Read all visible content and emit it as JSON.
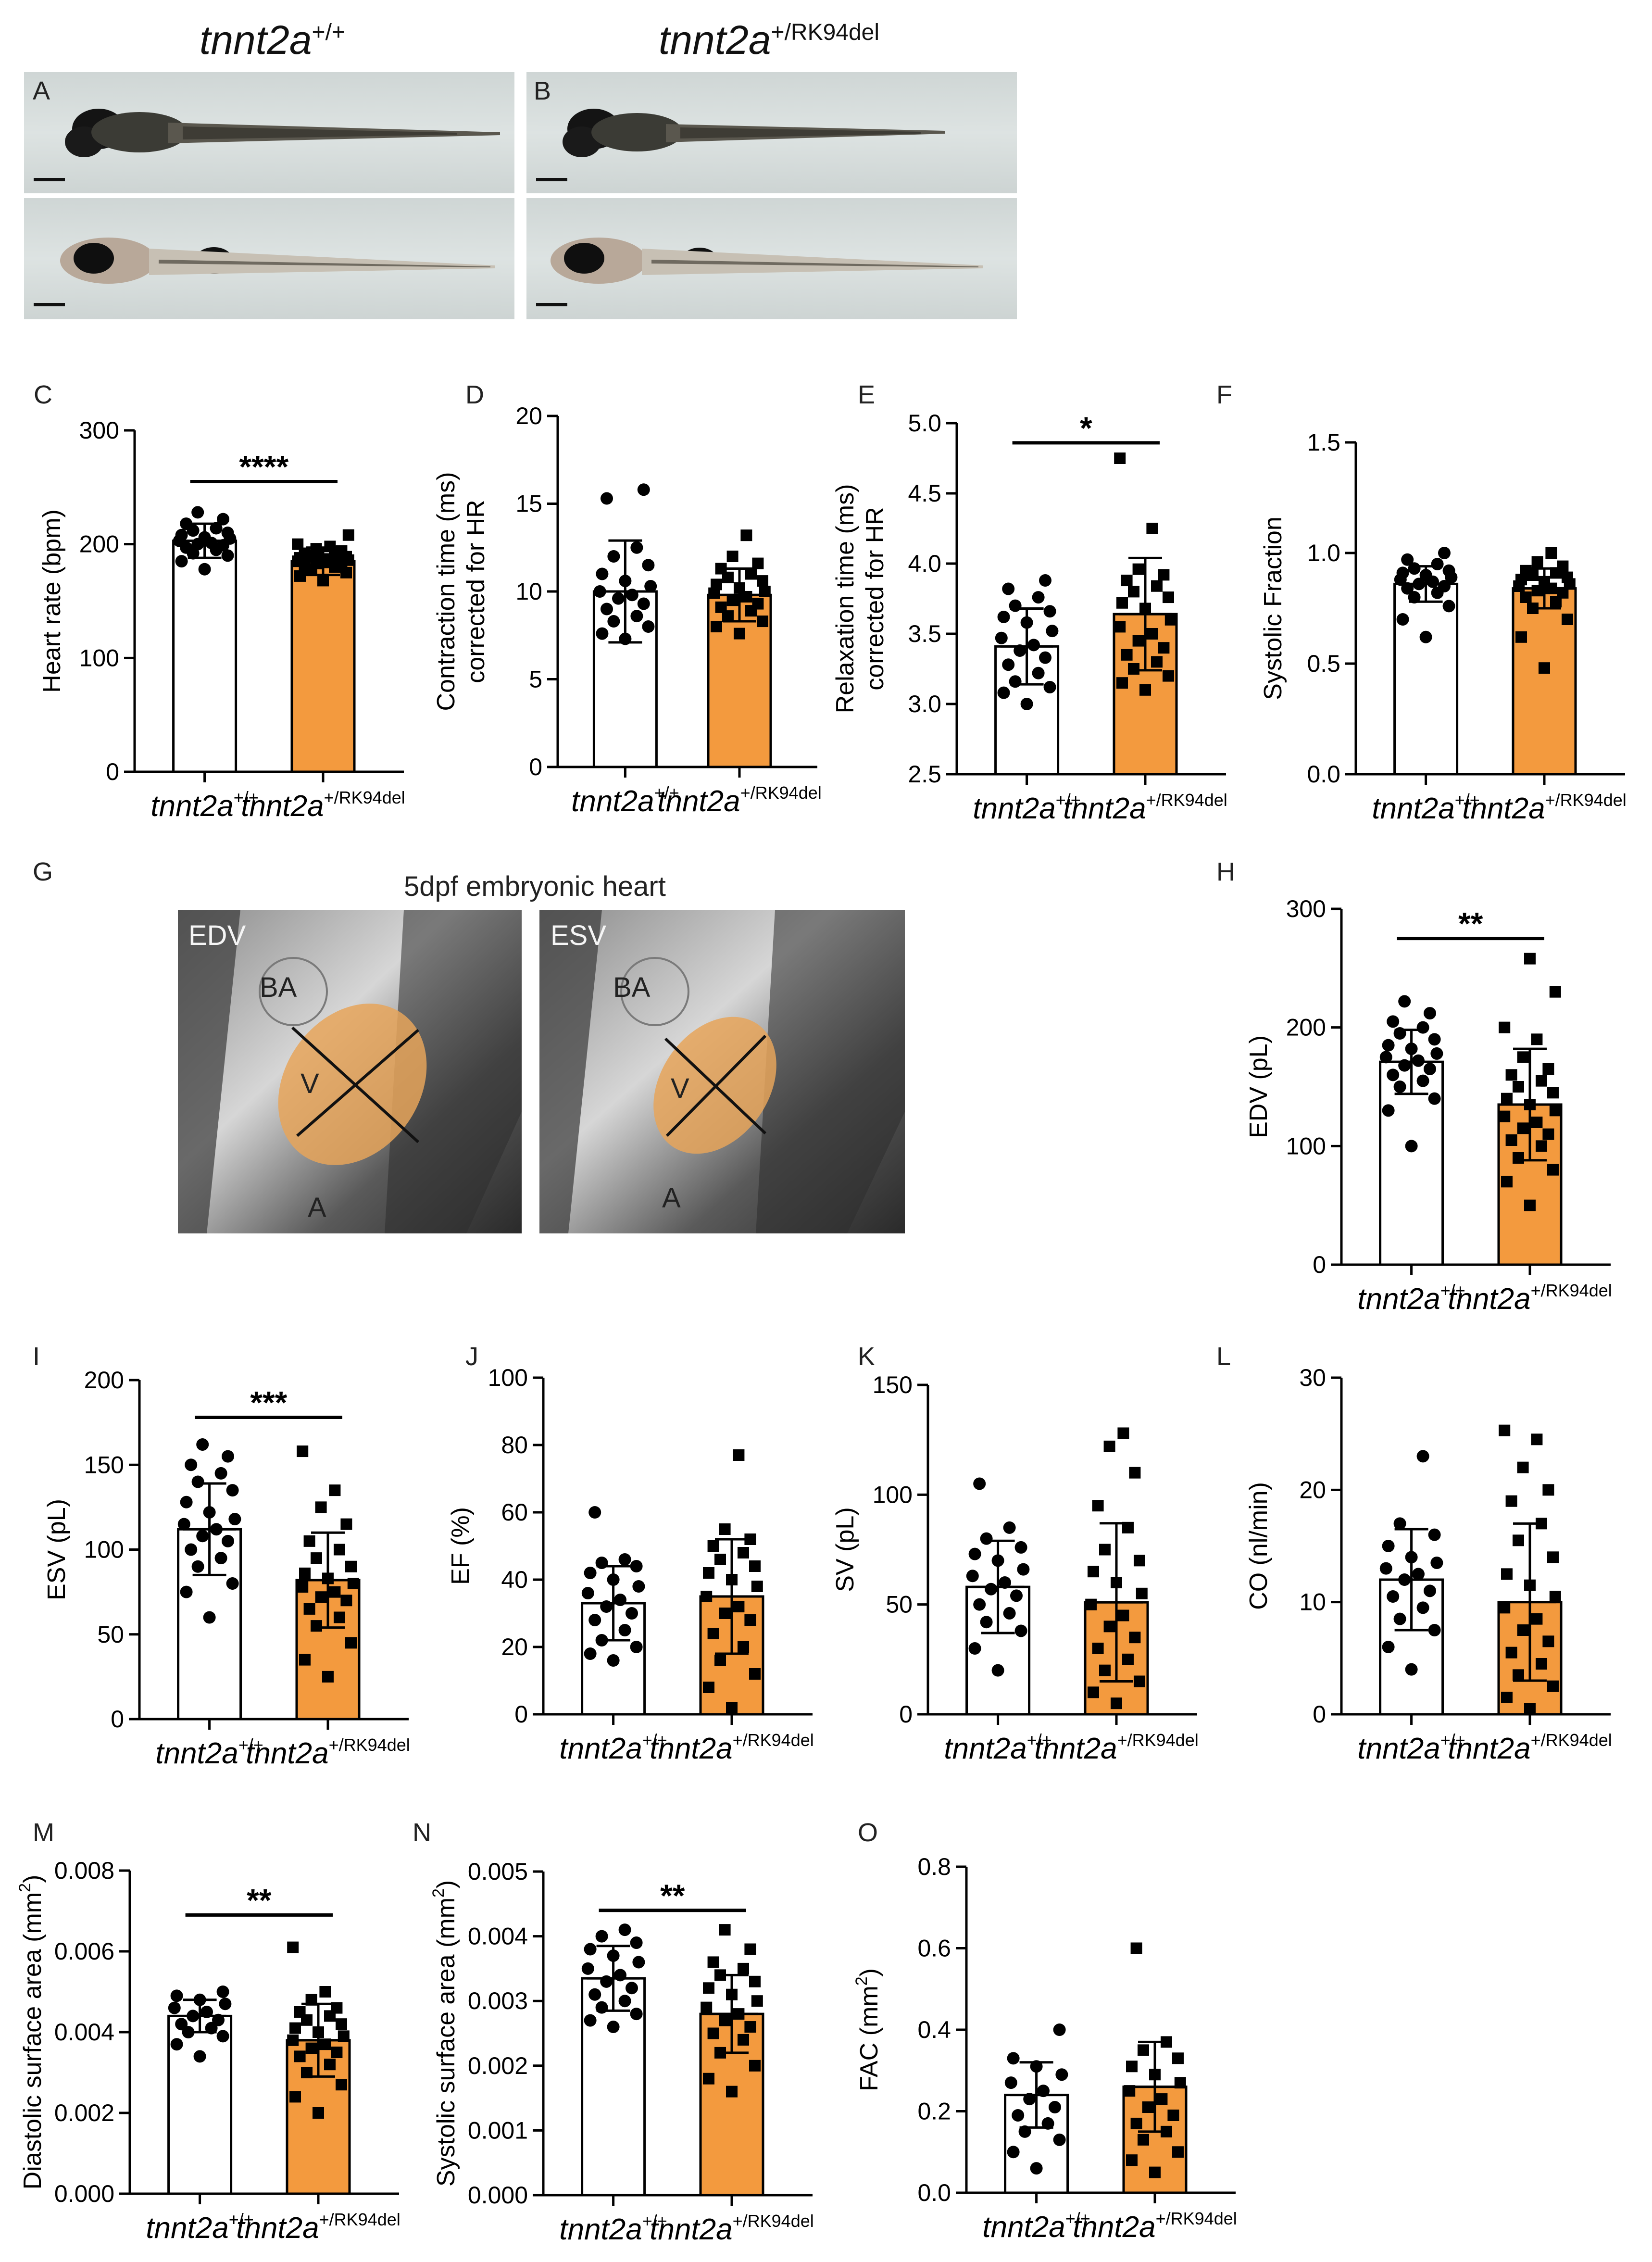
{
  "colors": {
    "mutant_bar": "#f39a3e",
    "wt_bar": "#ffffff",
    "axis": "#000000"
  },
  "header": {
    "wt": {
      "base": "tnnt2a",
      "sup": "+/+"
    },
    "mut": {
      "base": "tnnt2a",
      "sup": "+/RK94del"
    }
  },
  "panels": {
    "A": "A",
    "B": "B",
    "C": "C",
    "D": "D",
    "E": "E",
    "F": "F",
    "G": "G",
    "H": "H",
    "I": "I",
    "J": "J",
    "K": "K",
    "L": "L",
    "M": "M",
    "N": "N",
    "O": "O"
  },
  "heart": {
    "title": "5dpf embryonic heart",
    "left_label": "EDV",
    "right_label": "ESV",
    "ba": "BA",
    "v": "V",
    "a": "A"
  },
  "chart_data": [
    {
      "id": "C",
      "type": "bar",
      "ylabel": "Heart rate (bpm)",
      "ylim": [
        0,
        300
      ],
      "ticks": [
        "0",
        "100",
        "200",
        "300"
      ],
      "categories": [
        "tnnt2a+/+",
        "tnnt2a+/RK94del"
      ],
      "means": [
        203,
        185
      ],
      "sd": [
        15,
        12
      ],
      "significance": "****",
      "points_wt": [
        178,
        185,
        190,
        192,
        195,
        197,
        199,
        200,
        201,
        203,
        205,
        206,
        208,
        210,
        212,
        214,
        218,
        222,
        228
      ],
      "points_mut": [
        168,
        172,
        175,
        178,
        180,
        181,
        182,
        183,
        184,
        185,
        186,
        187,
        188,
        189,
        190,
        191,
        192,
        194,
        196,
        198,
        200,
        208
      ]
    },
    {
      "id": "D",
      "type": "bar",
      "ylabel": [
        "Contraction time (ms)",
        "corrected for HR"
      ],
      "ylim": [
        0,
        20
      ],
      "ticks": [
        "0",
        "5",
        "10",
        "15",
        "20"
      ],
      "categories": [
        "tnnt2a+/+",
        "tnnt2a+/RK94del"
      ],
      "means": [
        10.0,
        9.8
      ],
      "sd": [
        2.9,
        1.5
      ],
      "significance": "",
      "points_wt": [
        7.3,
        7.6,
        8.0,
        8.3,
        8.6,
        9.0,
        9.3,
        9.6,
        9.8,
        10.0,
        10.3,
        10.6,
        11.0,
        11.5,
        12.0,
        12.5,
        15.3,
        15.8
      ],
      "points_mut": [
        7.6,
        8.0,
        8.3,
        8.6,
        8.9,
        9.1,
        9.3,
        9.5,
        9.7,
        9.9,
        10.0,
        10.2,
        10.4,
        10.6,
        10.8,
        11.0,
        11.3,
        11.6,
        12.0,
        13.2
      ]
    },
    {
      "id": "E",
      "type": "bar",
      "ylabel": [
        "Relaxation time (ms)",
        "corrected for HR"
      ],
      "ylim": [
        2.5,
        5.0
      ],
      "ticks": [
        "2.5",
        "3.0",
        "3.5",
        "4.0",
        "4.5",
        "5.0"
      ],
      "categories": [
        "tnnt2a+/+",
        "tnnt2a+/RK94del"
      ],
      "means": [
        3.41,
        3.64
      ],
      "sd": [
        0.27,
        0.4
      ],
      "significance": "*",
      "points_wt": [
        3.0,
        3.08,
        3.12,
        3.16,
        3.22,
        3.28,
        3.33,
        3.38,
        3.42,
        3.47,
        3.52,
        3.58,
        3.62,
        3.66,
        3.7,
        3.76,
        3.82,
        3.88
      ],
      "points_mut": [
        3.1,
        3.15,
        3.2,
        3.25,
        3.3,
        3.35,
        3.4,
        3.45,
        3.5,
        3.55,
        3.6,
        3.68,
        3.72,
        3.76,
        3.8,
        3.84,
        3.88,
        3.92,
        3.96,
        4.25,
        4.75
      ]
    },
    {
      "id": "F",
      "type": "bar",
      "ylabel": "Systolic Fraction",
      "ylim": [
        0,
        1.5
      ],
      "ticks": [
        "0.0",
        "0.5",
        "1.0",
        "1.5"
      ],
      "categories": [
        "tnnt2a+/+",
        "tnnt2a+/RK94del"
      ],
      "means": [
        0.86,
        0.84
      ],
      "sd": [
        0.08,
        0.09
      ],
      "significance": "",
      "points_wt": [
        0.62,
        0.7,
        0.76,
        0.8,
        0.82,
        0.84,
        0.85,
        0.86,
        0.87,
        0.88,
        0.89,
        0.9,
        0.91,
        0.92,
        0.93,
        0.95,
        0.97,
        1.0
      ],
      "points_mut": [
        0.48,
        0.62,
        0.7,
        0.75,
        0.78,
        0.8,
        0.82,
        0.83,
        0.84,
        0.85,
        0.86,
        0.87,
        0.88,
        0.89,
        0.9,
        0.91,
        0.92,
        0.94,
        0.96,
        1.0
      ]
    },
    {
      "id": "H",
      "type": "bar",
      "ylabel": "EDV (pL)",
      "ylim": [
        0,
        300
      ],
      "ticks": [
        "0",
        "100",
        "200",
        "300"
      ],
      "categories": [
        "tnnt2a+/+",
        "tnnt2a+/RK94del"
      ],
      "means": [
        171,
        135
      ],
      "sd": [
        27,
        47
      ],
      "significance": "**",
      "points_wt": [
        100,
        130,
        140,
        150,
        155,
        160,
        165,
        168,
        172,
        175,
        178,
        182,
        185,
        190,
        195,
        200,
        205,
        212,
        222
      ],
      "points_mut": [
        50,
        70,
        80,
        90,
        100,
        105,
        110,
        115,
        120,
        125,
        130,
        135,
        140,
        145,
        150,
        155,
        160,
        165,
        175,
        190,
        200,
        230,
        258
      ]
    },
    {
      "id": "I",
      "type": "bar",
      "ylabel": "ESV (pL)",
      "ylim": [
        0,
        200
      ],
      "ticks": [
        "0",
        "50",
        "100",
        "150",
        "200"
      ],
      "categories": [
        "tnnt2a+/+",
        "tnnt2a+/RK94del"
      ],
      "means": [
        112,
        82
      ],
      "sd": [
        27,
        28
      ],
      "significance": "***",
      "points_wt": [
        60,
        75,
        80,
        90,
        95,
        100,
        105,
        108,
        112,
        115,
        118,
        122,
        128,
        135,
        140,
        145,
        150,
        155,
        162
      ],
      "points_mut": [
        25,
        35,
        45,
        55,
        60,
        65,
        70,
        72,
        75,
        78,
        80,
        83,
        86,
        90,
        95,
        100,
        105,
        115,
        125,
        135,
        158
      ]
    },
    {
      "id": "J",
      "type": "bar",
      "ylabel": "EF (%)",
      "ylim": [
        0,
        100
      ],
      "ticks": [
        "0",
        "20",
        "40",
        "60",
        "80",
        "100"
      ],
      "categories": [
        "tnnt2a+/+",
        "tnnt2a+/RK94del"
      ],
      "means": [
        33,
        35
      ],
      "sd": [
        11,
        17
      ],
      "significance": "",
      "points_wt": [
        16,
        18,
        20,
        22,
        25,
        28,
        30,
        32,
        34,
        36,
        38,
        40,
        42,
        44,
        45,
        46,
        60
      ],
      "points_mut": [
        2,
        8,
        12,
        16,
        20,
        24,
        28,
        30,
        32,
        35,
        38,
        40,
        42,
        44,
        46,
        48,
        50,
        52,
        55,
        77
      ]
    },
    {
      "id": "K",
      "type": "bar",
      "ylabel": "SV (pL)",
      "ylim": [
        0,
        150
      ],
      "ticks": [
        "0",
        "50",
        "100",
        "150"
      ],
      "categories": [
        "tnnt2a+/+",
        "tnnt2a+/RK94del"
      ],
      "means": [
        58,
        51
      ],
      "sd": [
        21,
        36
      ],
      "significance": "",
      "points_wt": [
        20,
        30,
        38,
        42,
        46,
        50,
        54,
        57,
        60,
        63,
        66,
        70,
        73,
        76,
        80,
        85,
        105
      ],
      "points_mut": [
        5,
        10,
        15,
        20,
        25,
        30,
        35,
        40,
        45,
        50,
        55,
        60,
        65,
        70,
        75,
        85,
        95,
        110,
        122,
        128
      ]
    },
    {
      "id": "L",
      "type": "bar",
      "ylabel": "CO (nl/min)",
      "ylim": [
        0,
        30
      ],
      "ticks": [
        "0",
        "10",
        "20",
        "30"
      ],
      "categories": [
        "tnnt2a+/+",
        "tnnt2a+/RK94del"
      ],
      "means": [
        12,
        10
      ],
      "sd": [
        4.5,
        7
      ],
      "significance": "",
      "points_wt": [
        4,
        6,
        7.5,
        8.5,
        9.5,
        10.5,
        11,
        12,
        12.5,
        13,
        13.5,
        14,
        15,
        16,
        17,
        23
      ],
      "points_mut": [
        0.5,
        1.5,
        2.5,
        3.5,
        4.5,
        5.5,
        6.5,
        7.5,
        8.5,
        9.5,
        10.5,
        11.5,
        12.5,
        14,
        15.5,
        17,
        19,
        20,
        22,
        24.5,
        25.3
      ]
    },
    {
      "id": "M",
      "type": "bar",
      "ylabel": [
        "Diastolic surface area (mm",
        ")"
      ],
      "ylabel_sup": "2",
      "ylim": [
        0,
        0.008
      ],
      "ticks": [
        "0.000",
        "0.002",
        "0.004",
        "0.006",
        "0.008"
      ],
      "categories": [
        "tnnt2a+/+",
        "tnnt2a+/RK94del"
      ],
      "means": [
        0.0044,
        0.0038
      ],
      "sd": [
        0.0004,
        0.0009
      ],
      "significance": "**",
      "points_wt": [
        0.0034,
        0.0037,
        0.0039,
        0.004,
        0.0041,
        0.0042,
        0.0043,
        0.0044,
        0.0045,
        0.0046,
        0.0047,
        0.0048,
        0.0049,
        0.005
      ],
      "points_mut": [
        0.002,
        0.0024,
        0.0027,
        0.003,
        0.0032,
        0.0034,
        0.0035,
        0.0036,
        0.0037,
        0.0038,
        0.0039,
        0.004,
        0.0041,
        0.0042,
        0.0043,
        0.0044,
        0.0045,
        0.0046,
        0.0048,
        0.005,
        0.0061
      ]
    },
    {
      "id": "N",
      "type": "bar",
      "ylabel": [
        "Systolic surface area (mm",
        ")"
      ],
      "ylabel_sup": "2",
      "ylim": [
        0,
        0.005
      ],
      "ticks": [
        "0.000",
        "0.001",
        "0.002",
        "0.003",
        "0.004",
        "0.005"
      ],
      "categories": [
        "tnnt2a+/+",
        "tnnt2a+/RK94del"
      ],
      "means": [
        0.00335,
        0.0028
      ],
      "sd": [
        0.0005,
        0.0006
      ],
      "significance": "**",
      "points_wt": [
        0.0026,
        0.0027,
        0.0028,
        0.0029,
        0.003,
        0.0031,
        0.0032,
        0.0033,
        0.0034,
        0.0035,
        0.0036,
        0.0037,
        0.0038,
        0.0039,
        0.004,
        0.0041
      ],
      "points_mut": [
        0.0016,
        0.0018,
        0.002,
        0.0022,
        0.0024,
        0.0025,
        0.0026,
        0.0027,
        0.0028,
        0.0029,
        0.003,
        0.0031,
        0.0032,
        0.0033,
        0.0034,
        0.0035,
        0.0036,
        0.0038,
        0.0041
      ]
    },
    {
      "id": "O",
      "type": "bar",
      "ylabel": [
        "FAC (mm",
        ")"
      ],
      "ylabel_sup": "2",
      "ylim": [
        0,
        0.8
      ],
      "ticks": [
        "0.0",
        "0.2",
        "0.4",
        "0.6",
        "0.8"
      ],
      "categories": [
        "tnnt2a+/+",
        "tnnt2a+/RK94del"
      ],
      "means": [
        0.24,
        0.26
      ],
      "sd": [
        0.08,
        0.11
      ],
      "significance": "",
      "points_wt": [
        0.06,
        0.1,
        0.13,
        0.15,
        0.17,
        0.19,
        0.21,
        0.23,
        0.25,
        0.27,
        0.29,
        0.31,
        0.33,
        0.4
      ],
      "points_mut": [
        0.05,
        0.08,
        0.1,
        0.13,
        0.15,
        0.17,
        0.19,
        0.21,
        0.23,
        0.25,
        0.27,
        0.29,
        0.31,
        0.33,
        0.35,
        0.37,
        0.6
      ]
    }
  ]
}
